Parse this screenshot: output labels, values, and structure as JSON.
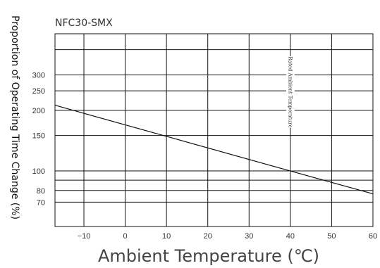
{
  "chart_data": {
    "type": "line",
    "title": "NFC30-SMX",
    "xlabel": "Ambient Temperature (℃)",
    "ylabel": "Proportion of Operating Time Change (%)",
    "xlim": [
      -17,
      60
    ],
    "x_ticks": [
      -10,
      0,
      10,
      20,
      30,
      40,
      50,
      60
    ],
    "x_tick_labels": [
      "−10",
      "0",
      "10",
      "20",
      "30",
      "40",
      "50",
      "60"
    ],
    "y_scale": "log",
    "ylim": [
      53,
      480
    ],
    "y_ticks": [
      70,
      80,
      100,
      150,
      200,
      250,
      300
    ],
    "y_tick_labels": [
      "70",
      "80",
      "100",
      "150",
      "200",
      "250",
      "300"
    ],
    "y_grid_extra": [
      90,
      400
    ],
    "grid": true,
    "annotation": {
      "text": "Rated Ambient Temperature",
      "x": 40
    },
    "series": [
      {
        "x": [
          -17,
          40,
          60
        ],
        "y": [
          212,
          100,
          77
        ]
      }
    ]
  }
}
